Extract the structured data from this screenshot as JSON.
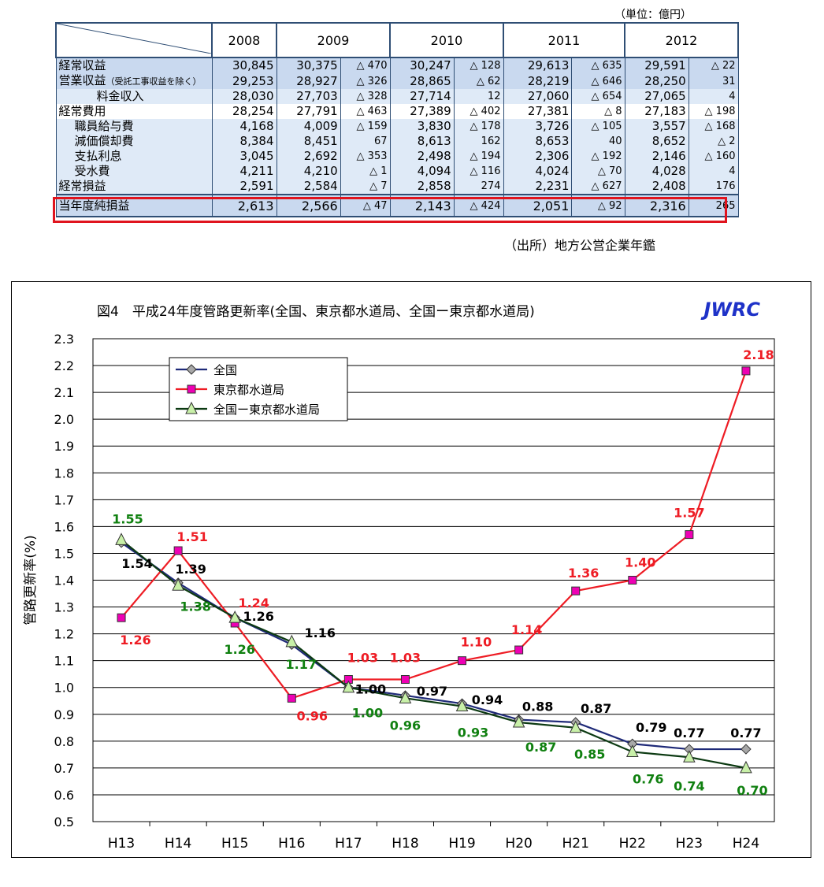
{
  "table": {
    "unit_label": "（単位：億円）",
    "years": [
      "2008",
      "2009",
      "2010",
      "2011",
      "2012"
    ],
    "rows": [
      {
        "label": "経常収益",
        "sub": "",
        "values": [
          "30,845",
          "30,375",
          "△ 470",
          "30,247",
          "△ 128",
          "29,613",
          "△ 635",
          "29,591",
          "△ 22"
        ]
      },
      {
        "label": "営業収益",
        "sub": "（受託工事収益を除く）",
        "values": [
          "29,253",
          "28,927",
          "△ 326",
          "28,865",
          "△ 62",
          "28,219",
          "△ 646",
          "28,250",
          "31"
        ]
      },
      {
        "label": "料金収入",
        "sub": "",
        "values": [
          "28,030",
          "27,703",
          "△ 328",
          "27,714",
          "12",
          "27,060",
          "△ 654",
          "27,065",
          "4"
        ]
      },
      {
        "label": "経常費用",
        "sub": "",
        "values": [
          "28,254",
          "27,791",
          "△ 463",
          "27,389",
          "△ 402",
          "27,381",
          "△ 8",
          "27,183",
          "△ 198"
        ]
      },
      {
        "label": "職員給与費",
        "sub": "",
        "values": [
          "4,168",
          "4,009",
          "△ 159",
          "3,830",
          "△ 178",
          "3,726",
          "△ 105",
          "3,557",
          "△ 168"
        ]
      },
      {
        "label": "減価償却費",
        "sub": "",
        "values": [
          "8,384",
          "8,451",
          "67",
          "8,613",
          "162",
          "8,653",
          "40",
          "8,652",
          "△ 2"
        ]
      },
      {
        "label": "支払利息",
        "sub": "",
        "values": [
          "3,045",
          "2,692",
          "△ 353",
          "2,498",
          "△ 194",
          "2,306",
          "△ 192",
          "2,146",
          "△ 160"
        ]
      },
      {
        "label": "受水費",
        "sub": "",
        "values": [
          "4,211",
          "4,210",
          "△ 1",
          "4,094",
          "△ 116",
          "4,024",
          "△ 70",
          "4,028",
          "4"
        ]
      },
      {
        "label": "経常損益",
        "sub": "",
        "values": [
          "2,591",
          "2,584",
          "△ 7",
          "2,858",
          "274",
          "2,231",
          "△ 627",
          "2,408",
          "176"
        ]
      }
    ],
    "total_row": {
      "label": "当年度純損益",
      "values": [
        "2,613",
        "2,566",
        "△ 47",
        "2,143",
        "△ 424",
        "2,051",
        "△ 92",
        "2,316",
        "265"
      ]
    },
    "highlight_color": "#e0141e",
    "source": "（出所）地方公営企業年鑑"
  },
  "chart_data": {
    "type": "line",
    "title": "図4　平成24年度管路更新率(全国、東京都水道局、全国ー東京都水道局)",
    "brand": "JWRC",
    "ylabel": "管路更新率(%)",
    "xlabel": "",
    "ylim": [
      0.5,
      2.3
    ],
    "ytick_step": 0.1,
    "grid": true,
    "legend_position": "top-left",
    "categories": [
      "H13",
      "H14",
      "H15",
      "H16",
      "H17",
      "H18",
      "H19",
      "H20",
      "H21",
      "H22",
      "H23",
      "H24"
    ],
    "series": [
      {
        "name": "全国",
        "color": "#1f2a78",
        "marker": "diamond",
        "marker_fill": "#a8a8a8",
        "label_color": "#000000",
        "values": [
          1.54,
          1.39,
          1.26,
          1.16,
          1.0,
          0.97,
          0.94,
          0.88,
          0.87,
          0.79,
          0.77,
          0.77
        ]
      },
      {
        "name": "東京都水道局",
        "color": "#ee1c24",
        "marker": "square",
        "marker_fill": "#ee00b4",
        "label_color": "#ee1c24",
        "values": [
          1.26,
          1.51,
          1.24,
          0.96,
          1.03,
          1.03,
          1.1,
          1.14,
          1.36,
          1.4,
          1.57,
          2.18
        ]
      },
      {
        "name": "全国ー東京都水道局",
        "color": "#0c3a12",
        "marker": "triangle",
        "marker_fill": "#c8f0a8",
        "label_color": "#108010",
        "values": [
          1.55,
          1.38,
          1.26,
          1.17,
          1.0,
          0.96,
          0.93,
          0.87,
          0.85,
          0.76,
          0.74,
          0.7
        ]
      }
    ]
  }
}
